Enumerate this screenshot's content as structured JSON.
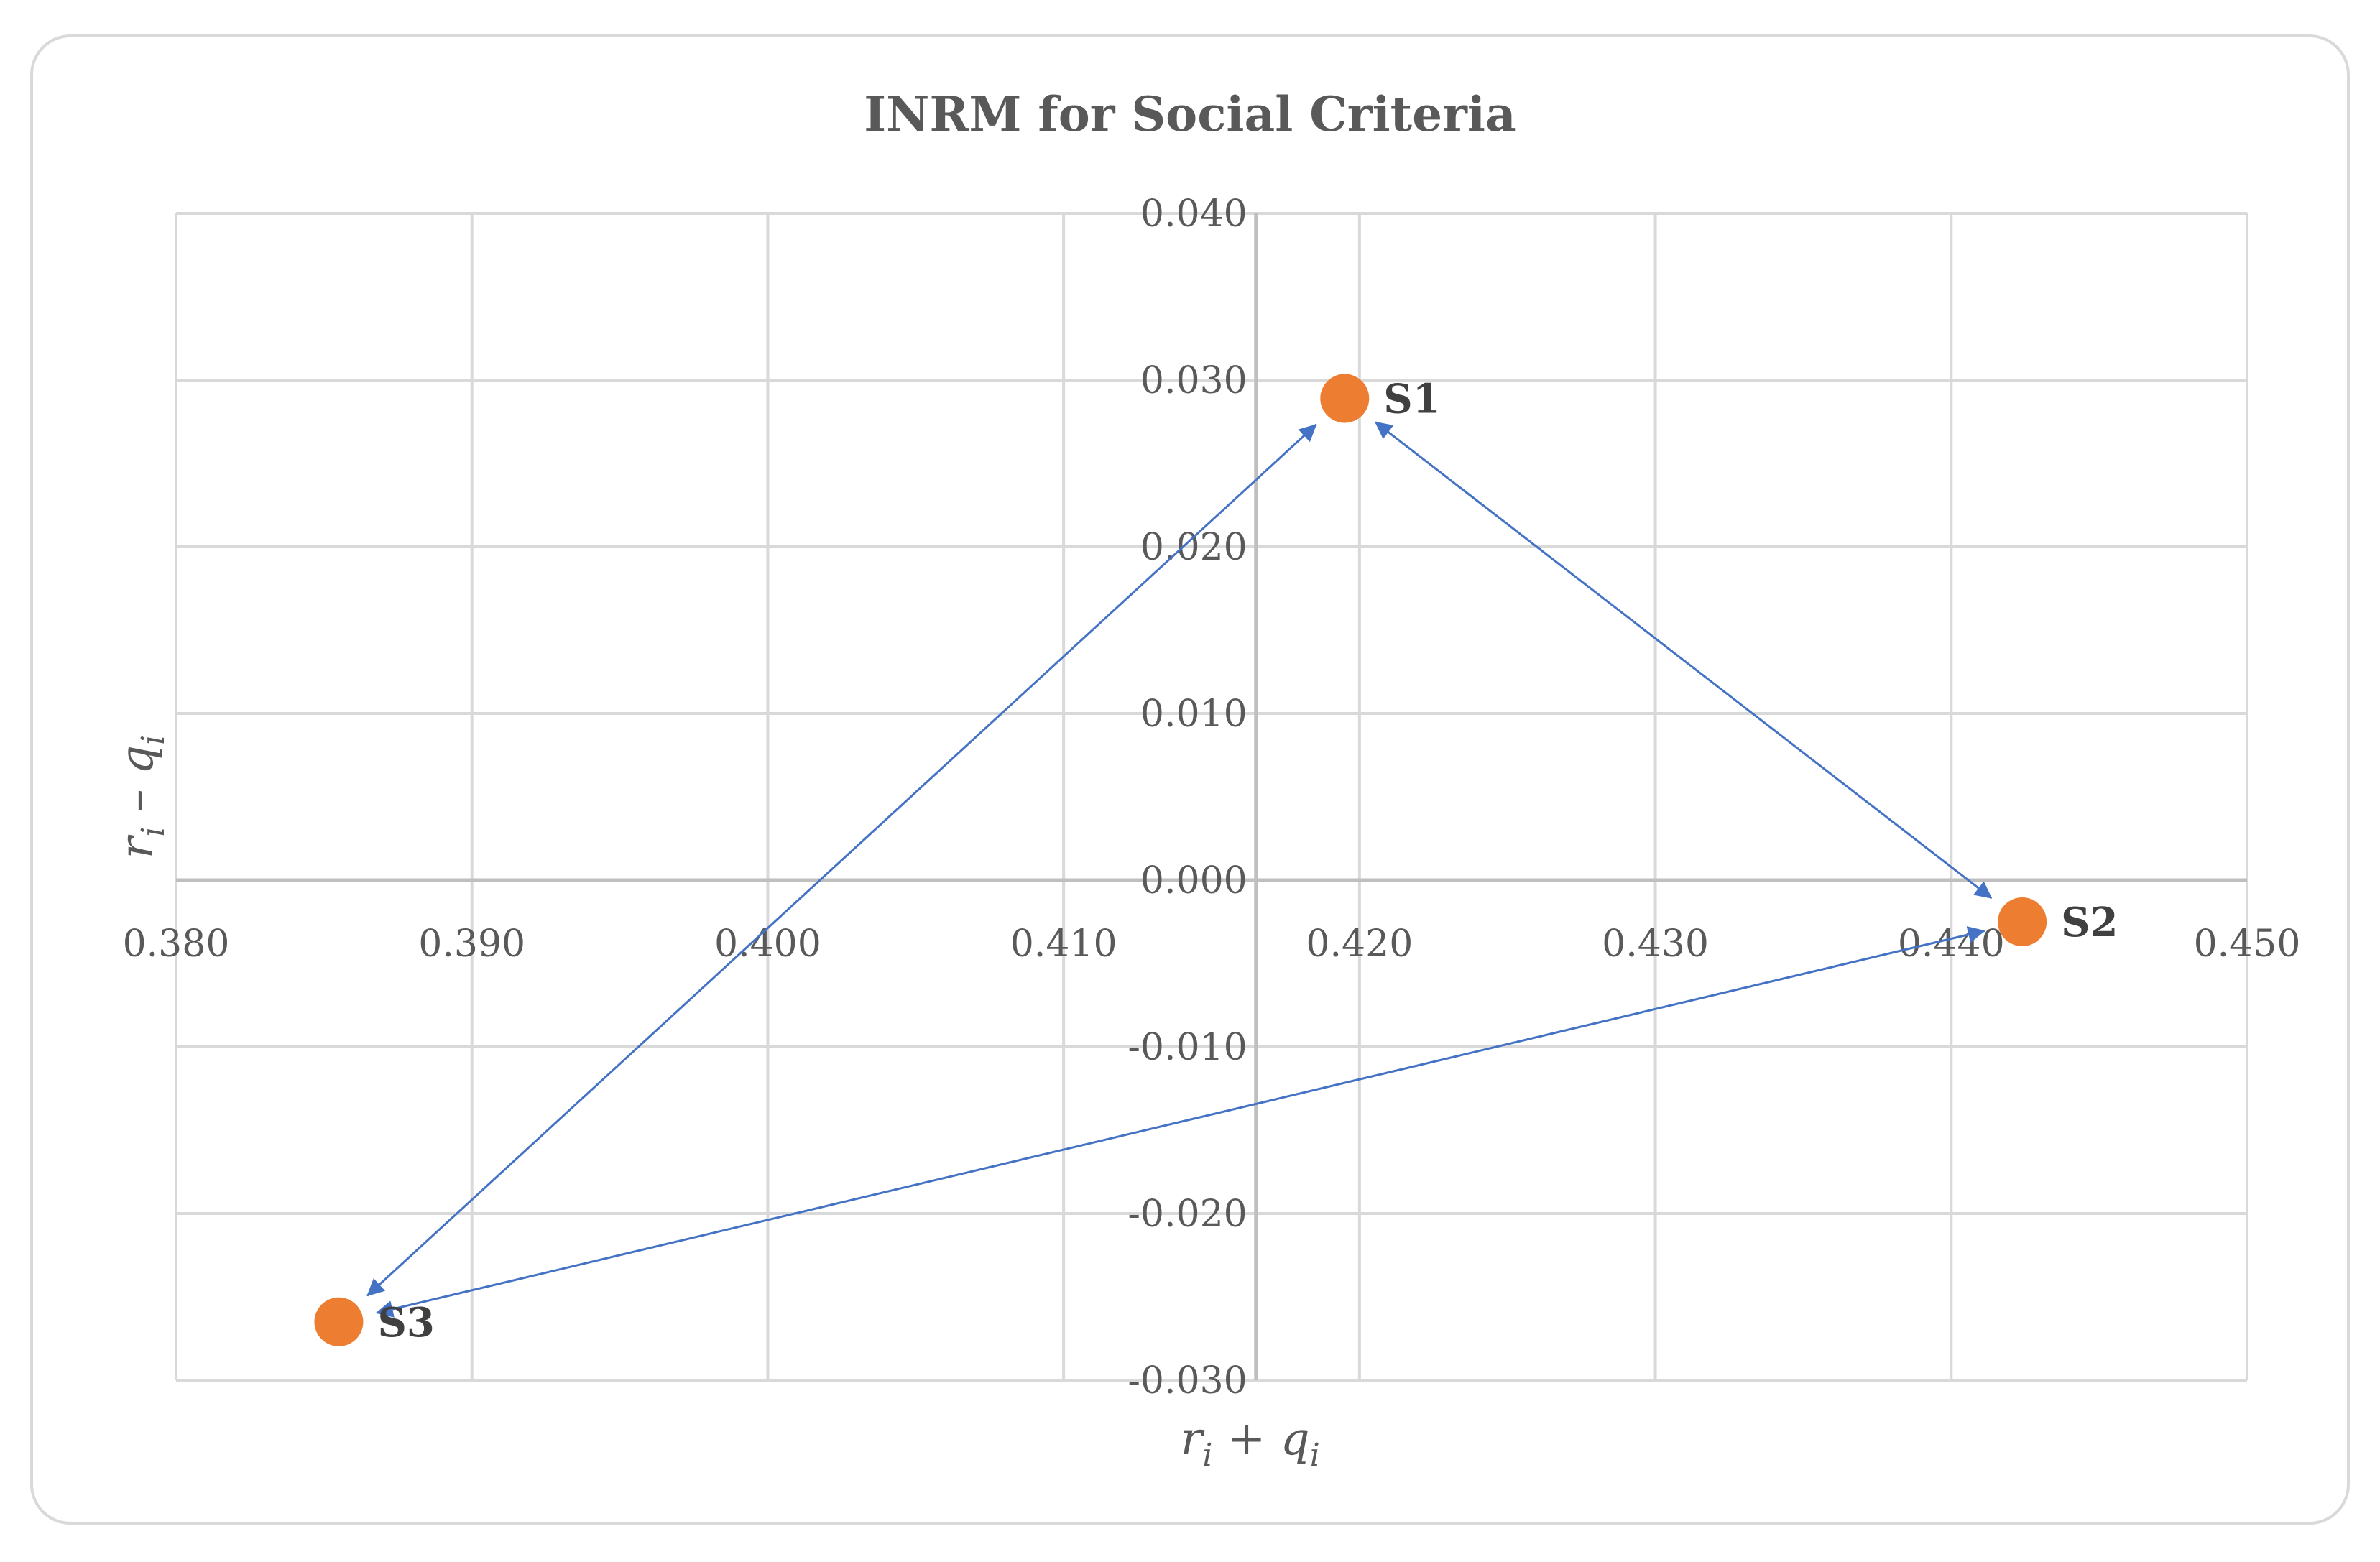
{
  "chart_data": {
    "type": "scatter",
    "title": "INRM for Social Criteria",
    "xlabel": "r_i + q_i",
    "ylabel": "r_i - q_i",
    "xlim": [
      0.38,
      0.45
    ],
    "ylim": [
      -0.03,
      0.04
    ],
    "x_ticks": [
      0.38,
      0.39,
      0.4,
      0.41,
      0.42,
      0.43,
      0.44,
      0.45
    ],
    "y_ticks": [
      0.04,
      0.03,
      0.02,
      0.01,
      0.0,
      -0.01,
      -0.02,
      -0.03
    ],
    "x_tick_labels": [
      "0.380",
      "0.390",
      "0.400",
      "0.410",
      "0.420",
      "0.430",
      "0.440",
      "0.450"
    ],
    "y_tick_labels": [
      "0.040",
      "0.030",
      "0.020",
      "0.010",
      "0.000",
      "-0.010",
      "-0.020",
      "-0.030"
    ],
    "grid": true,
    "points": [
      {
        "label": "S1",
        "x": 0.4195,
        "y": 0.0289
      },
      {
        "label": "S2",
        "x": 0.4424,
        "y": -0.0025
      },
      {
        "label": "S3",
        "x": 0.3855,
        "y": -0.0265
      }
    ],
    "relations": [
      {
        "from": "S3",
        "to": "S1",
        "direction": "both"
      },
      {
        "from": "S1",
        "to": "S2",
        "direction": "both"
      },
      {
        "from": "S3",
        "to": "S2",
        "direction": "both"
      }
    ],
    "colors": {
      "point": "#ED7D31",
      "arrow": "#4472C4",
      "grid": "#d9d9d9",
      "axis": "#bfbfbf",
      "text": "#595959"
    }
  }
}
